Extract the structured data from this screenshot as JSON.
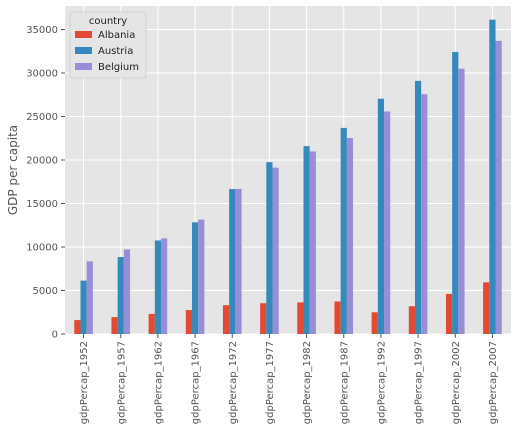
{
  "chart_data": {
    "type": "bar",
    "title": "",
    "xlabel": "",
    "ylabel": "GDP per capita",
    "ylim": [
      0,
      37700
    ],
    "yticks": [
      0,
      5000,
      10000,
      15000,
      20000,
      25000,
      30000,
      35000
    ],
    "grid": true,
    "legend": {
      "title": "country",
      "placement": "top-left"
    },
    "categories": [
      "gdpPercap_1952",
      "gdpPercap_1957",
      "gdpPercap_1962",
      "gdpPercap_1967",
      "gdpPercap_1972",
      "gdpPercap_1977",
      "gdpPercap_1982",
      "gdpPercap_1987",
      "gdpPercap_1992",
      "gdpPercap_1997",
      "gdpPercap_2002",
      "gdpPercap_2007"
    ],
    "series": [
      {
        "name": "Albania",
        "color": "#E24A33",
        "values": [
          1601,
          1942,
          2313,
          2760,
          3313,
          3533,
          3631,
          3739,
          2497,
          3193,
          4604,
          5937
        ]
      },
      {
        "name": "Austria",
        "color": "#348ABD",
        "values": [
          6137,
          8843,
          10751,
          12835,
          16662,
          19749,
          21597,
          23688,
          27042,
          29096,
          32418,
          36126
        ]
      },
      {
        "name": "Belgium",
        "color": "#988ED5",
        "values": [
          8343,
          9715,
          10991,
          13149,
          16672,
          19118,
          20980,
          22526,
          25576,
          27561,
          30486,
          33693
        ]
      }
    ]
  }
}
